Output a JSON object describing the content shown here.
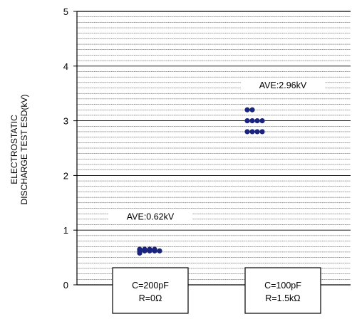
{
  "chart_data": {
    "type": "scatter",
    "title": "",
    "ylabel_lines": [
      "ELECTROSTATIC",
      "DISCHARGE TEST ESD(kV)"
    ],
    "xlabel": "",
    "ylim": [
      0,
      5
    ],
    "yticks": [
      "0",
      "1",
      "2",
      "3",
      "4",
      "5"
    ],
    "grid": true,
    "categories": [
      {
        "lines": [
          "C=200pF",
          "R=0Ω"
        ]
      },
      {
        "lines": [
          "C=100pF",
          "R=1.5kΩ"
        ]
      }
    ],
    "series": [
      {
        "points": [
          {
            "x": 0,
            "y": 0.65,
            "col": 0
          },
          {
            "x": 0,
            "y": 0.65,
            "col": 1
          },
          {
            "x": 0,
            "y": 0.65,
            "col": 2
          },
          {
            "x": 0,
            "y": 0.65,
            "col": 3
          },
          {
            "x": 0,
            "y": 0.62,
            "col": 0
          },
          {
            "x": 0,
            "y": 0.62,
            "col": 1
          },
          {
            "x": 0,
            "y": 0.62,
            "col": 2
          },
          {
            "x": 0,
            "y": 0.62,
            "col": 3
          },
          {
            "x": 0,
            "y": 0.62,
            "col": 4
          },
          {
            "x": 0,
            "y": 0.58,
            "col": 0
          }
        ]
      },
      {
        "points": [
          {
            "x": 1,
            "y": 3.2,
            "col": 0
          },
          {
            "x": 1,
            "y": 3.2,
            "col": 1
          },
          {
            "x": 1,
            "y": 3.0,
            "col": 0
          },
          {
            "x": 1,
            "y": 3.0,
            "col": 1
          },
          {
            "x": 1,
            "y": 3.0,
            "col": 2
          },
          {
            "x": 1,
            "y": 3.0,
            "col": 3
          },
          {
            "x": 1,
            "y": 2.8,
            "col": 0
          },
          {
            "x": 1,
            "y": 2.8,
            "col": 1
          },
          {
            "x": 1,
            "y": 2.8,
            "col": 2
          },
          {
            "x": 1,
            "y": 2.8,
            "col": 3
          }
        ]
      }
    ],
    "annotations": [
      {
        "text": "AVE:0.62kV",
        "y": 1.25,
        "x": 0
      },
      {
        "text": "AVE:2.96kV",
        "y": 3.65,
        "x": 1
      }
    ],
    "colors": {
      "point": "#1a237e",
      "grid": "#000000"
    }
  }
}
